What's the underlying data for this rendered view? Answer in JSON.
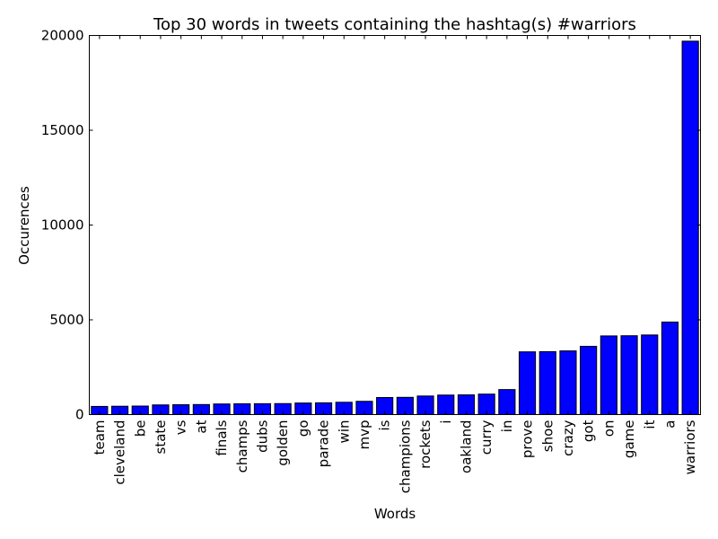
{
  "chart_data": {
    "type": "bar",
    "title": "Top 30 words in tweets containing the hashtag(s) #warriors",
    "xlabel": "Words",
    "ylabel": "Occurences",
    "ylim": [
      0,
      20000
    ],
    "yticks": [
      0,
      5000,
      10000,
      15000,
      20000
    ],
    "bar_color": "#0000ff",
    "grid": false,
    "categories": [
      "team",
      "cleveland",
      "be",
      "state",
      "vs",
      "at",
      "finals",
      "champs",
      "dubs",
      "golden",
      "go",
      "parade",
      "win",
      "mvp",
      "is",
      "champions",
      "rockets",
      "i",
      "oakland",
      "curry",
      "in",
      "prove",
      "shoe",
      "crazy",
      "got",
      "on",
      "game",
      "it",
      "a",
      "warriors"
    ],
    "values": [
      430,
      440,
      450,
      510,
      520,
      530,
      560,
      570,
      575,
      580,
      610,
      620,
      650,
      700,
      900,
      910,
      980,
      1030,
      1040,
      1080,
      1320,
      3310,
      3320,
      3360,
      3600,
      4150,
      4160,
      4200,
      4880,
      19700
    ]
  }
}
